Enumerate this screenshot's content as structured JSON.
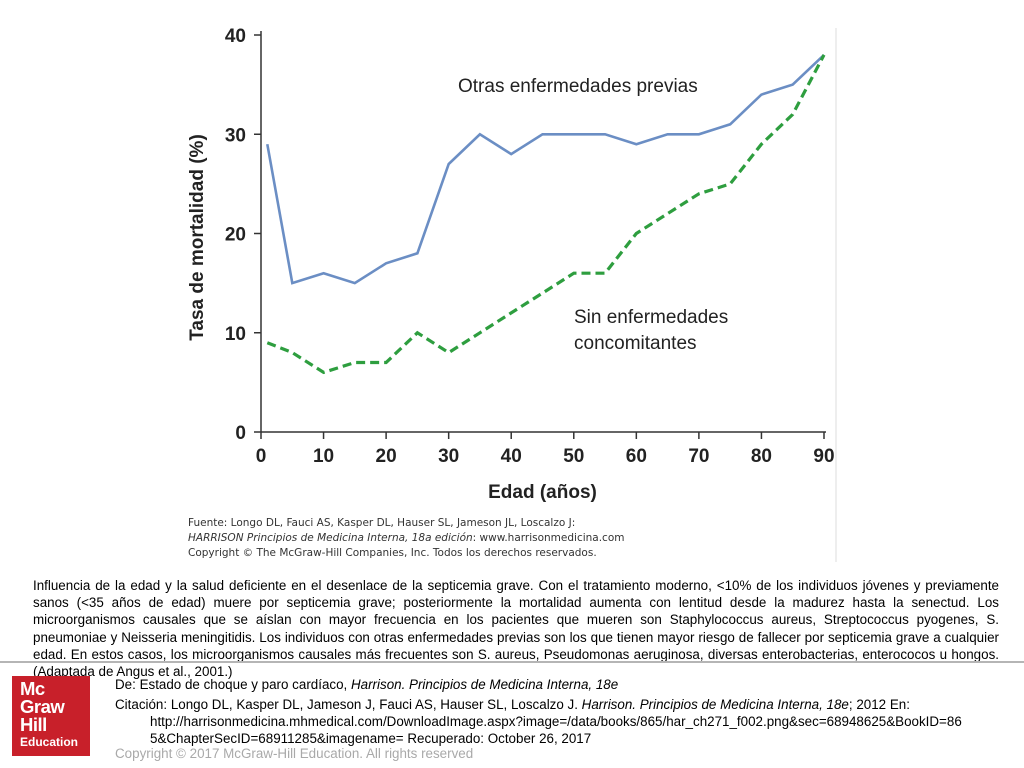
{
  "chart_data": {
    "type": "line",
    "xlabel": "Edad (años)",
    "ylabel": "Tasa de mortalidad (%)",
    "xlim": [
      0,
      90
    ],
    "ylim": [
      0,
      40
    ],
    "x_ticks": [
      0,
      10,
      20,
      30,
      40,
      50,
      60,
      70,
      80,
      90
    ],
    "y_ticks": [
      0,
      10,
      20,
      30,
      40
    ],
    "grid": false,
    "series": [
      {
        "name": "Otras enfermedades previas",
        "style": "solid",
        "color": "#6b8ec4",
        "x": [
          1,
          5,
          10,
          15,
          20,
          25,
          30,
          35,
          40,
          45,
          50,
          55,
          60,
          65,
          70,
          75,
          80,
          85,
          90
        ],
        "y": [
          29,
          15,
          16,
          15,
          17,
          18,
          27,
          30,
          28,
          30,
          30,
          30,
          29,
          30,
          30,
          31,
          34,
          35,
          38
        ]
      },
      {
        "name": "Sin enfermedades concomitantes",
        "name_lines": [
          "Sin enfermedades",
          "concomitantes"
        ],
        "style": "dashed",
        "color": "#2e9e3f",
        "x": [
          1,
          5,
          10,
          15,
          20,
          25,
          30,
          35,
          40,
          45,
          50,
          55,
          60,
          65,
          70,
          75,
          80,
          85,
          90
        ],
        "y": [
          9,
          8,
          6,
          7,
          7,
          10,
          8,
          10,
          12,
          14,
          16,
          16,
          20,
          22,
          24,
          25,
          29,
          32,
          38
        ]
      }
    ]
  },
  "source": {
    "line1": "Fuente: Longo DL, Fauci AS, Kasper DL, Hauser SL, Jameson JL, Loscalzo J:",
    "line2_italic": "HARRISON Principios de Medicina Interna, 18a edición",
    "line2_rest": ": www.harrisonmedicina.com",
    "line3": "Copyright © The McGraw-Hill Companies, Inc. Todos los derechos reservados."
  },
  "caption": "Influencia de la edad y la salud deficiente en el desenlace de la septicemia grave. Con el tratamiento moderno, <10% de los individuos jóvenes y previamente sanos (<35 años de edad) muere por septicemia grave; posteriormente la mortalidad aumenta con lentitud desde la madurez hasta la senectud. Los microorganismos causales que se aíslan con mayor frecuencia en los pacientes que mueren son Staphylococcus aureus, Streptococcus pyogenes, S. pneumoniae y Neisseria meningitidis. Los individuos con otras enfermedades previas son los que tienen mayor riesgo de fallecer por septicemia grave a cualquier edad. En estos casos, los microorganismos causales más frecuentes son S. aureus, Pseudomonas aeruginosa, diversas enterobacterias, enterococos u hongos. (Adaptada de Angus et al., 2001.)",
  "logo": {
    "line1": "Mc",
    "line2": "Graw",
    "line3": "Hill",
    "line4": "Education",
    "color": "#c8202a"
  },
  "credits": {
    "from_prefix": "De: ",
    "from_text": "Estado de choque y paro cardíaco, ",
    "from_book": "Harrison. Principios de Medicina Interna, 18e",
    "citation_prefix": "Citación: Longo DL, Kasper DL, Jameson J, Fauci AS, Hauser SL, Loscalzo J. ",
    "citation_book": "Harrison. Principios de Medicina Interna, 18e",
    "citation_rest": "; 2012 En:",
    "url_line1": "http://harrisonmedicina.mhmedical.com/DownloadImage.aspx?image=/data/books/865/har_ch271_f002.png&sec=68948625&BookID=86",
    "url_line2": "5&ChapterSecID=68911285&imagename= Recuperado: October 26, 2017",
    "copyright": "Copyright © 2017 McGraw-Hill Education. All rights reserved"
  }
}
